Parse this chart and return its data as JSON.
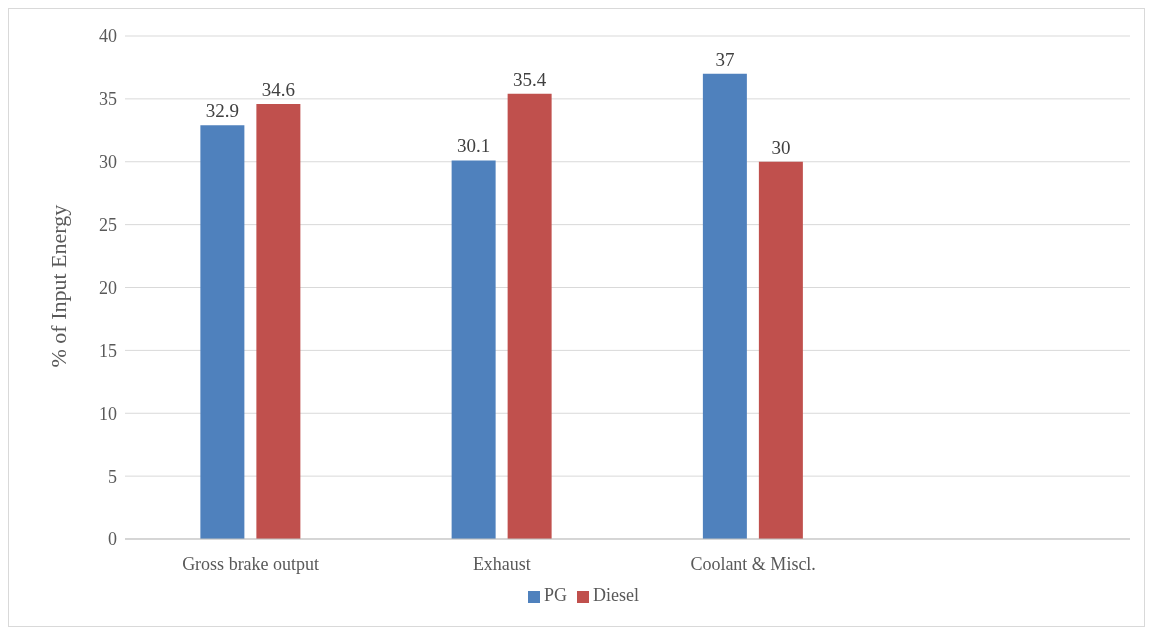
{
  "chart_data": {
    "type": "bar",
    "ylabel": "% of Input Energy",
    "categories": [
      "Gross brake output",
      "Exhaust",
      "Coolant & Miscl.",
      null
    ],
    "series": [
      {
        "name": "PG",
        "color": "#4f81bd",
        "values": [
          32.9,
          30.1,
          37,
          null
        ]
      },
      {
        "name": "Diesel",
        "color": "#c0504d",
        "values": [
          34.6,
          35.4,
          30,
          null
        ]
      }
    ],
    "ylim": [
      0,
      40
    ],
    "yticks": [
      0,
      5,
      10,
      15,
      20,
      25,
      30,
      35,
      40
    ],
    "grid": "y",
    "legend": "bottom",
    "data_labels": true
  }
}
